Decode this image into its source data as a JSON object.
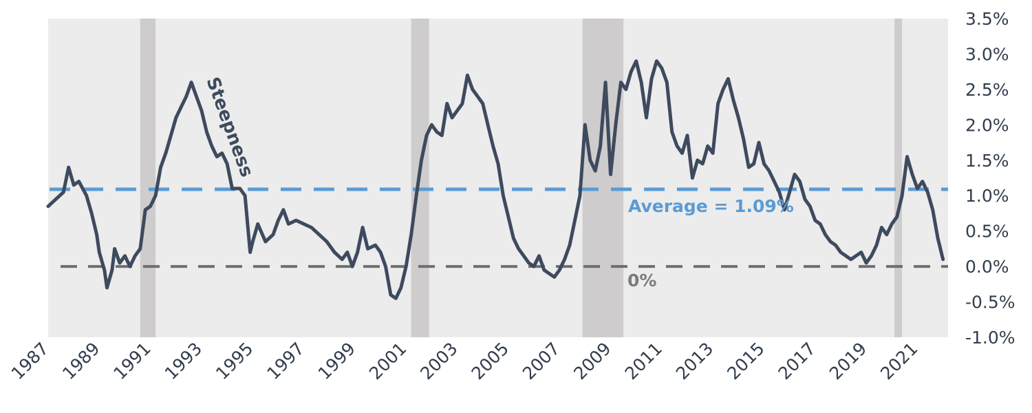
{
  "chart_data": {
    "type": "line",
    "title": "",
    "xlabel": "",
    "ylabel": "",
    "xlim": [
      1987.0,
      2022.2
    ],
    "ylim": [
      -1.0,
      3.5
    ],
    "y_ticks": [
      {
        "value": 3.5,
        "label": "3.5%"
      },
      {
        "value": 3.0,
        "label": "3.0%"
      },
      {
        "value": 2.5,
        "label": "2.5%"
      },
      {
        "value": 2.0,
        "label": "2.0%"
      },
      {
        "value": 1.5,
        "label": "1.5%"
      },
      {
        "value": 1.0,
        "label": "1.0%"
      },
      {
        "value": 0.5,
        "label": "0.5%"
      },
      {
        "value": 0.0,
        "label": "0.0%"
      },
      {
        "value": -0.5,
        "label": "-0.5%"
      },
      {
        "value": -1.0,
        "label": "-1.0%"
      }
    ],
    "x_ticks": [
      {
        "value": 1987,
        "label": "1987"
      },
      {
        "value": 1989,
        "label": "1989"
      },
      {
        "value": 1991,
        "label": "1991"
      },
      {
        "value": 1993,
        "label": "1993"
      },
      {
        "value": 1995,
        "label": "1995"
      },
      {
        "value": 1997,
        "label": "1997"
      },
      {
        "value": 1999,
        "label": "1999"
      },
      {
        "value": 2001,
        "label": "2001"
      },
      {
        "value": 2003,
        "label": "2003"
      },
      {
        "value": 2005,
        "label": "2005"
      },
      {
        "value": 2007,
        "label": "2007"
      },
      {
        "value": 2009,
        "label": "2009"
      },
      {
        "value": 2011,
        "label": "2011"
      },
      {
        "value": 2013,
        "label": "2013"
      },
      {
        "value": 2015,
        "label": "2015"
      },
      {
        "value": 2017,
        "label": "2017"
      },
      {
        "value": 2019,
        "label": "2019"
      },
      {
        "value": 2021,
        "label": "2021"
      }
    ],
    "recessions": [
      {
        "start": 1990.6,
        "end": 1991.2
      },
      {
        "start": 2001.2,
        "end": 2001.9
      },
      {
        "start": 2007.9,
        "end": 2009.5
      },
      {
        "start": 2020.1,
        "end": 2020.4
      }
    ],
    "reference_lines": [
      {
        "value": 1.09,
        "label": "Average = 1.09%",
        "color": "#5b9bd5",
        "style": "dashed"
      },
      {
        "value": 0.0,
        "label": "0%",
        "color": "#6e6e6e",
        "style": "dashed"
      }
    ],
    "annotation": "Steepness",
    "series": [
      {
        "color": "#3e4a5e",
        "points": [
          [
            1987.0,
            0.85
          ],
          [
            1987.3,
            0.95
          ],
          [
            1987.6,
            1.05
          ],
          [
            1987.8,
            1.4
          ],
          [
            1988.0,
            1.15
          ],
          [
            1988.2,
            1.2
          ],
          [
            1988.5,
            1.0
          ],
          [
            1988.7,
            0.75
          ],
          [
            1988.9,
            0.45
          ],
          [
            1989.0,
            0.2
          ],
          [
            1989.2,
            -0.05
          ],
          [
            1989.3,
            -0.3
          ],
          [
            1989.5,
            -0.05
          ],
          [
            1989.6,
            0.25
          ],
          [
            1989.8,
            0.05
          ],
          [
            1990.0,
            0.15
          ],
          [
            1990.2,
            0.0
          ],
          [
            1990.4,
            0.15
          ],
          [
            1990.6,
            0.25
          ],
          [
            1990.8,
            0.8
          ],
          [
            1991.0,
            0.85
          ],
          [
            1991.2,
            1.0
          ],
          [
            1991.4,
            1.4
          ],
          [
            1991.6,
            1.6
          ],
          [
            1991.8,
            1.85
          ],
          [
            1992.0,
            2.1
          ],
          [
            1992.2,
            2.25
          ],
          [
            1992.4,
            2.4
          ],
          [
            1992.6,
            2.6
          ],
          [
            1992.8,
            2.4
          ],
          [
            1993.0,
            2.2
          ],
          [
            1993.2,
            1.9
          ],
          [
            1993.4,
            1.7
          ],
          [
            1993.6,
            1.55
          ],
          [
            1993.8,
            1.6
          ],
          [
            1994.0,
            1.45
          ],
          [
            1994.2,
            1.1
          ],
          [
            1994.5,
            1.1
          ],
          [
            1994.7,
            1.0
          ],
          [
            1994.9,
            0.2
          ],
          [
            1995.0,
            0.35
          ],
          [
            1995.2,
            0.6
          ],
          [
            1995.5,
            0.35
          ],
          [
            1995.8,
            0.45
          ],
          [
            1996.0,
            0.65
          ],
          [
            1996.2,
            0.8
          ],
          [
            1996.4,
            0.6
          ],
          [
            1996.7,
            0.65
          ],
          [
            1997.0,
            0.6
          ],
          [
            1997.3,
            0.55
          ],
          [
            1997.6,
            0.45
          ],
          [
            1997.9,
            0.35
          ],
          [
            1998.2,
            0.2
          ],
          [
            1998.5,
            0.1
          ],
          [
            1998.7,
            0.2
          ],
          [
            1998.9,
            0.0
          ],
          [
            1999.1,
            0.2
          ],
          [
            1999.3,
            0.55
          ],
          [
            1999.5,
            0.25
          ],
          [
            1999.8,
            0.3
          ],
          [
            2000.0,
            0.2
          ],
          [
            2000.2,
            0.0
          ],
          [
            2000.4,
            -0.4
          ],
          [
            2000.6,
            -0.45
          ],
          [
            2000.8,
            -0.3
          ],
          [
            2001.0,
            0.0
          ],
          [
            2001.2,
            0.45
          ],
          [
            2001.4,
            1.0
          ],
          [
            2001.6,
            1.5
          ],
          [
            2001.8,
            1.85
          ],
          [
            2002.0,
            2.0
          ],
          [
            2002.2,
            1.9
          ],
          [
            2002.4,
            1.85
          ],
          [
            2002.6,
            2.3
          ],
          [
            2002.8,
            2.1
          ],
          [
            2003.0,
            2.2
          ],
          [
            2003.2,
            2.3
          ],
          [
            2003.4,
            2.7
          ],
          [
            2003.6,
            2.5
          ],
          [
            2003.8,
            2.4
          ],
          [
            2004.0,
            2.3
          ],
          [
            2004.2,
            2.0
          ],
          [
            2004.4,
            1.7
          ],
          [
            2004.6,
            1.45
          ],
          [
            2004.8,
            1.0
          ],
          [
            2005.0,
            0.7
          ],
          [
            2005.2,
            0.4
          ],
          [
            2005.4,
            0.25
          ],
          [
            2005.6,
            0.15
          ],
          [
            2005.8,
            0.05
          ],
          [
            2006.0,
            0.0
          ],
          [
            2006.2,
            0.15
          ],
          [
            2006.4,
            -0.05
          ],
          [
            2006.6,
            -0.1
          ],
          [
            2006.8,
            -0.15
          ],
          [
            2007.0,
            -0.05
          ],
          [
            2007.2,
            0.1
          ],
          [
            2007.4,
            0.3
          ],
          [
            2007.6,
            0.65
          ],
          [
            2007.8,
            1.0
          ],
          [
            2008.0,
            2.0
          ],
          [
            2008.2,
            1.5
          ],
          [
            2008.4,
            1.35
          ],
          [
            2008.6,
            1.7
          ],
          [
            2008.8,
            2.6
          ],
          [
            2009.0,
            1.3
          ],
          [
            2009.2,
            2.0
          ],
          [
            2009.4,
            2.6
          ],
          [
            2009.6,
            2.5
          ],
          [
            2009.8,
            2.75
          ],
          [
            2010.0,
            2.9
          ],
          [
            2010.2,
            2.6
          ],
          [
            2010.4,
            2.1
          ],
          [
            2010.6,
            2.65
          ],
          [
            2010.8,
            2.9
          ],
          [
            2011.0,
            2.8
          ],
          [
            2011.2,
            2.6
          ],
          [
            2011.4,
            1.9
          ],
          [
            2011.6,
            1.7
          ],
          [
            2011.8,
            1.6
          ],
          [
            2012.0,
            1.85
          ],
          [
            2012.2,
            1.25
          ],
          [
            2012.4,
            1.5
          ],
          [
            2012.6,
            1.45
          ],
          [
            2012.8,
            1.7
          ],
          [
            2013.0,
            1.6
          ],
          [
            2013.2,
            2.3
          ],
          [
            2013.4,
            2.5
          ],
          [
            2013.6,
            2.65
          ],
          [
            2013.8,
            2.35
          ],
          [
            2014.0,
            2.1
          ],
          [
            2014.2,
            1.8
          ],
          [
            2014.4,
            1.4
          ],
          [
            2014.6,
            1.45
          ],
          [
            2014.8,
            1.75
          ],
          [
            2015.0,
            1.45
          ],
          [
            2015.2,
            1.35
          ],
          [
            2015.4,
            1.2
          ],
          [
            2015.6,
            1.05
          ],
          [
            2015.8,
            0.8
          ],
          [
            2016.0,
            1.05
          ],
          [
            2016.2,
            1.3
          ],
          [
            2016.4,
            1.2
          ],
          [
            2016.6,
            0.95
          ],
          [
            2016.8,
            0.85
          ],
          [
            2017.0,
            0.65
          ],
          [
            2017.2,
            0.6
          ],
          [
            2017.4,
            0.45
          ],
          [
            2017.6,
            0.35
          ],
          [
            2017.8,
            0.3
          ],
          [
            2018.0,
            0.2
          ],
          [
            2018.2,
            0.15
          ],
          [
            2018.4,
            0.1
          ],
          [
            2018.6,
            0.15
          ],
          [
            2018.8,
            0.2
          ],
          [
            2019.0,
            0.05
          ],
          [
            2019.2,
            0.15
          ],
          [
            2019.4,
            0.3
          ],
          [
            2019.6,
            0.55
          ],
          [
            2019.8,
            0.45
          ],
          [
            2020.0,
            0.6
          ],
          [
            2020.2,
            0.7
          ],
          [
            2020.4,
            1.0
          ],
          [
            2020.6,
            1.55
          ],
          [
            2020.8,
            1.3
          ],
          [
            2021.0,
            1.1
          ],
          [
            2021.2,
            1.2
          ],
          [
            2021.4,
            1.05
          ],
          [
            2021.6,
            0.8
          ],
          [
            2021.8,
            0.4
          ],
          [
            2022.0,
            0.1
          ]
        ]
      }
    ]
  }
}
